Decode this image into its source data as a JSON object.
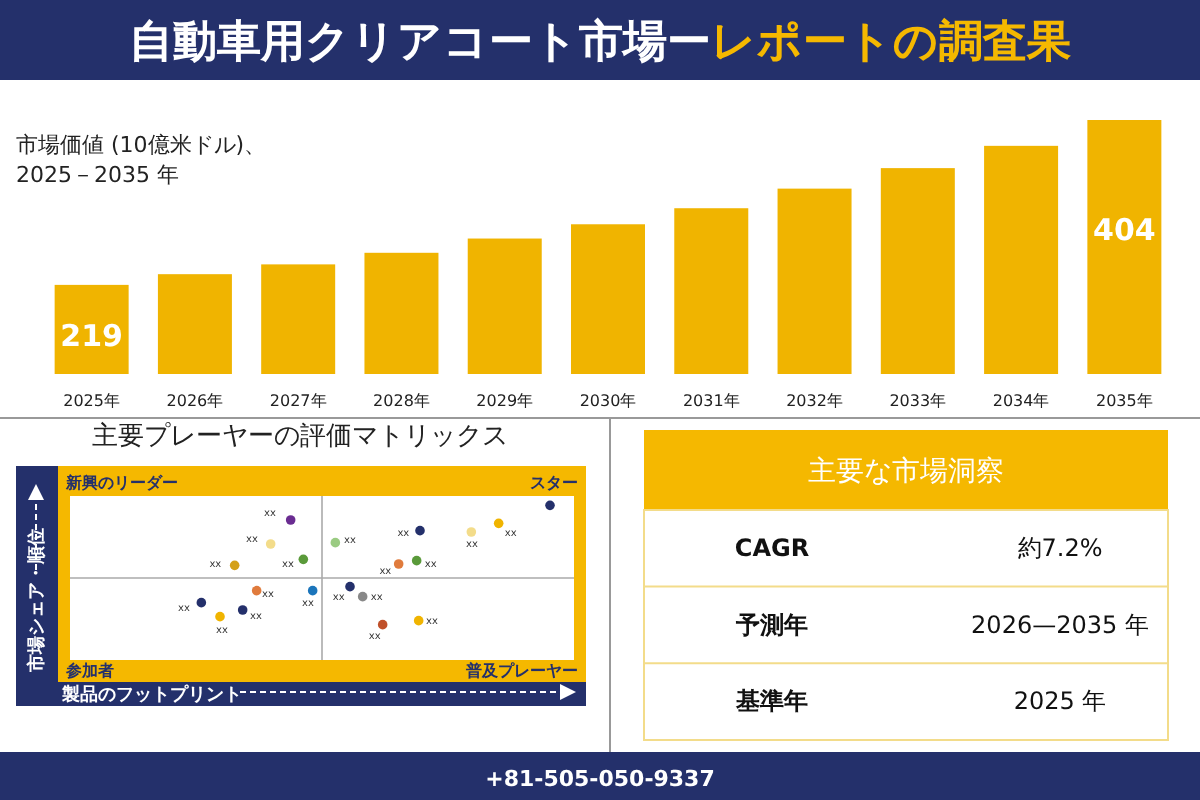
{
  "chart_data": [
    {
      "type": "bar",
      "title": "自動車用クリアコート市場ー",
      "subtitle": "レポートの調査果",
      "ylabel": "市場価値 (10億米ドル)、2025－2035 年",
      "categories": [
        "2025年",
        "2026年",
        "2027年",
        "2028年",
        "2029年",
        "2030年",
        "2031年",
        "2032年",
        "2033年",
        "2034年",
        "2035年"
      ],
      "values": [
        219,
        231,
        242,
        255,
        271,
        287,
        305,
        327,
        350,
        375,
        404
      ],
      "value_labels": [
        "219",
        null,
        null,
        null,
        null,
        null,
        null,
        null,
        null,
        null,
        "404"
      ],
      "ylim": [
        119,
        404
      ],
      "color": "#f0b400",
      "annotations": [
        "+81-505-050-9337"
      ]
    },
    {
      "type": "other",
      "title": "主要プレーヤーの評価マトリックス",
      "xlabel": "製品のフットプリント",
      "ylabel": "市場シェア・順位",
      "annotations": [
        "新興のリーダー",
        "スター",
        "参加者",
        "普及プレーヤー",
        "xx",
        "xx",
        "xx",
        "xx",
        "xx",
        "xx",
        "xx",
        "xx",
        "xx",
        "xx",
        "xx",
        "xx",
        "xx",
        "xx",
        "xx",
        "xx",
        "xx",
        "xx",
        "xx"
      ]
    },
    {
      "type": "other",
      "title": "主要な市場洞察",
      "annotations": [
        "CAGR",
        "約7.2%",
        "予測年",
        "2026—2035 年",
        "基準年",
        "2025 年"
      ]
    }
  ]
}
